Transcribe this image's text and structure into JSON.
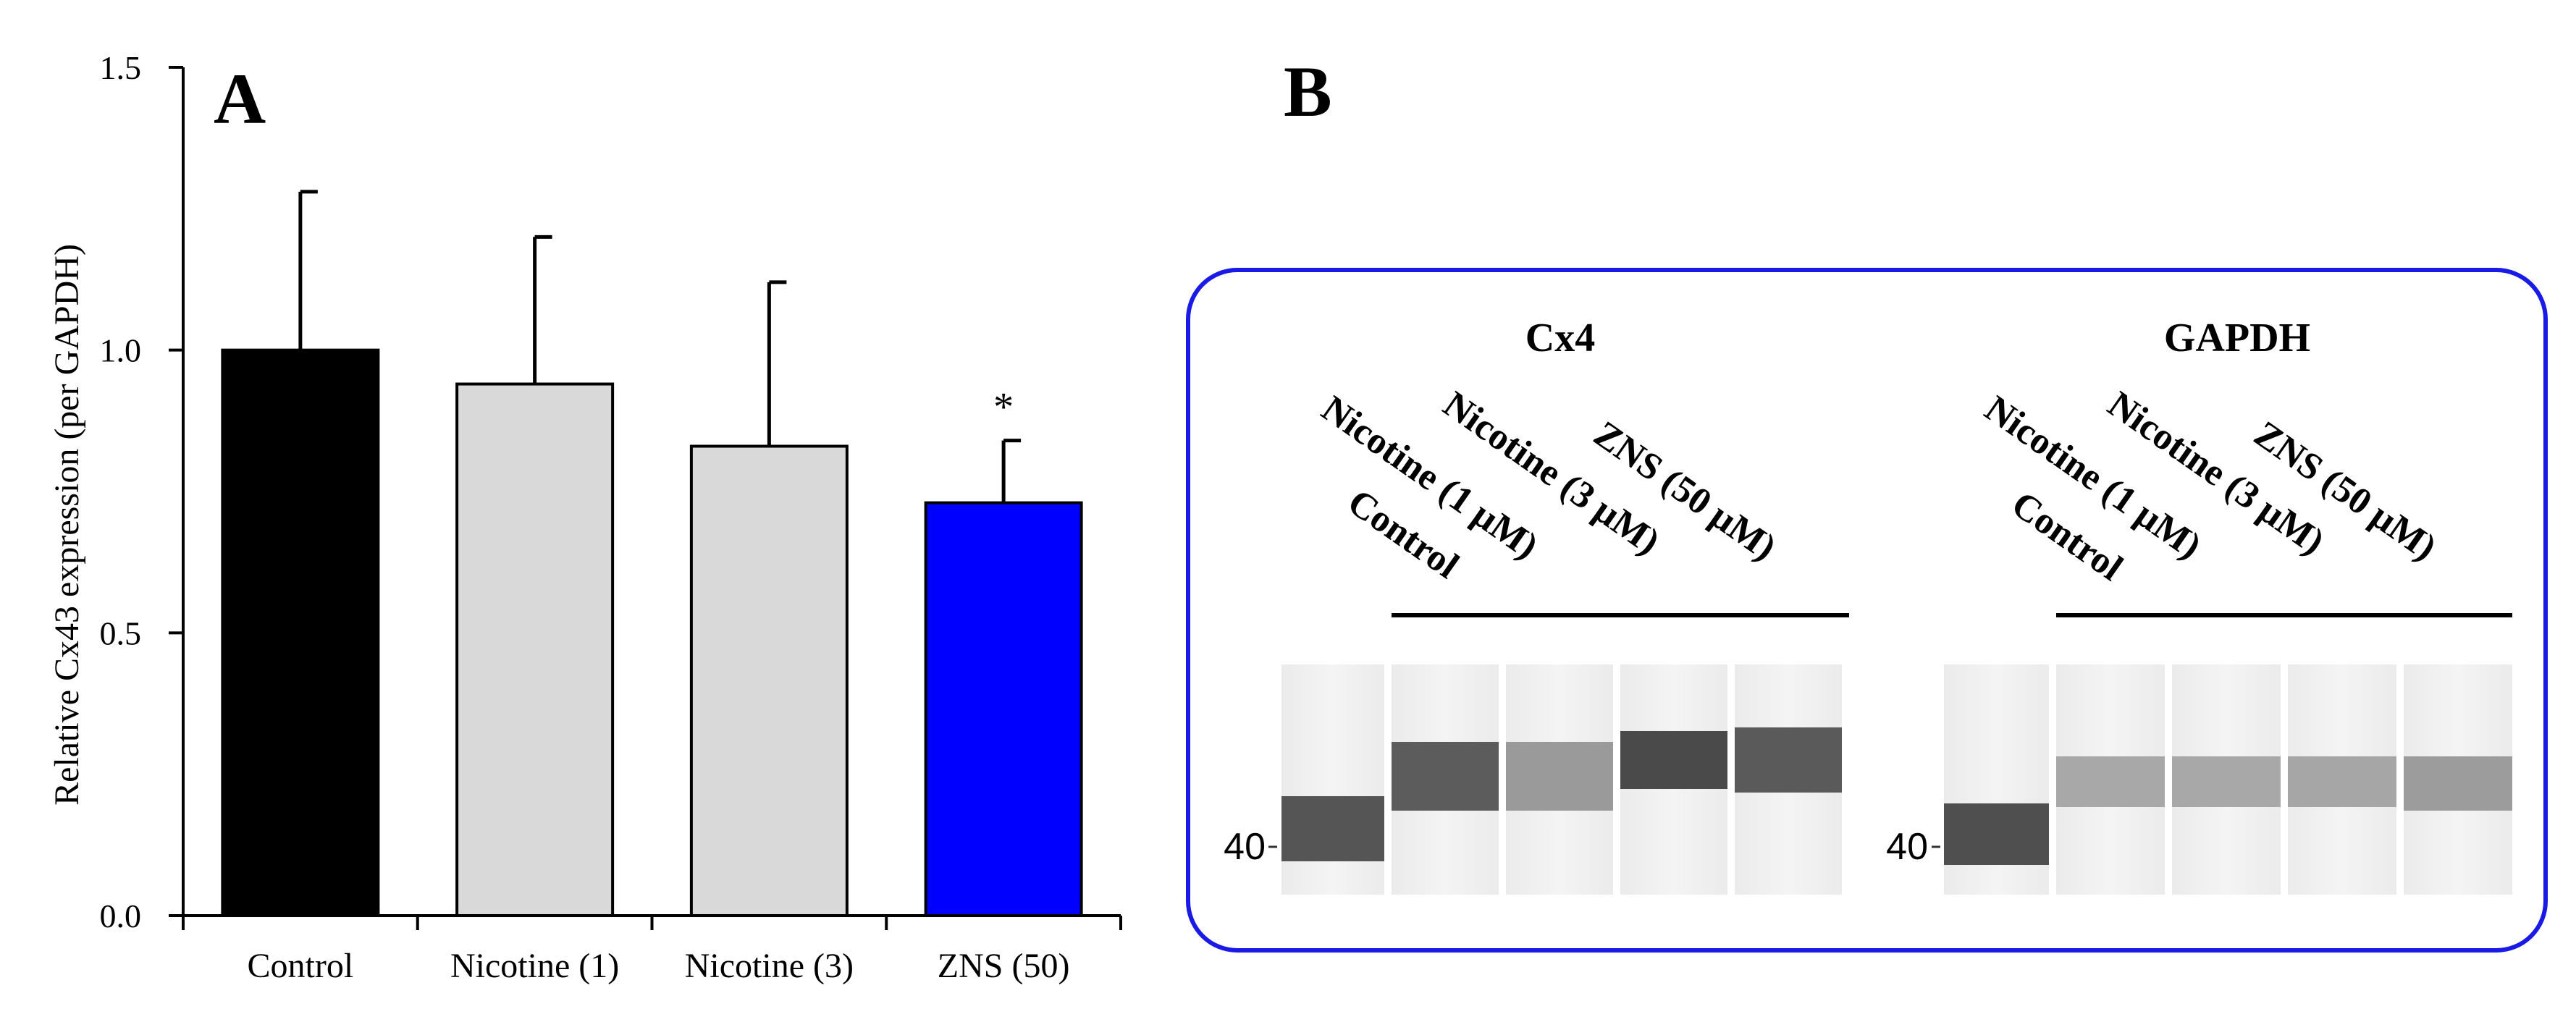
{
  "panel_a": {
    "label": "A",
    "ylabel": "Relative Cx43 expression (per GAPDH)",
    "yticks": [
      "0.0",
      "0.5",
      "1.0",
      "1.5"
    ]
  },
  "panel_b": {
    "label": "B",
    "groups": [
      {
        "title": "Cx4",
        "lanes": [
          "Control",
          "Nicotine (1 μM)",
          "Nicotine (3 μM)",
          "ZNS (50 μM)"
        ],
        "marker": "40"
      },
      {
        "title": "GAPDH",
        "lanes": [
          "Control",
          "Nicotine (1 μM)",
          "Nicotine (3 μM)",
          "ZNS (50 μM)"
        ],
        "marker": "40"
      }
    ],
    "border_color": "#1a1ae6"
  },
  "chart_data": {
    "type": "bar",
    "title": "",
    "xlabel": "",
    "ylabel": "Relative Cx43 expression (per GAPDH)",
    "ylim": [
      0,
      1.5
    ],
    "yticks": [
      0,
      0.5,
      1.0,
      1.5
    ],
    "categories": [
      "Control",
      "Nicotine (1)",
      "Nicotine (3)",
      "ZNS (50)"
    ],
    "values": [
      1.0,
      0.94,
      0.83,
      0.73
    ],
    "errors": [
      0.28,
      0.26,
      0.29,
      0.11
    ],
    "annotations": [
      "",
      "",
      "",
      "*"
    ],
    "colors": [
      "#000000",
      "#d9d9d9",
      "#d9d9d9",
      "#0000ff"
    ],
    "grid": false,
    "legend": "none"
  }
}
